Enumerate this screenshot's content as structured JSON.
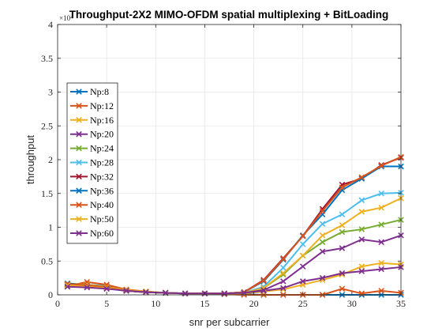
{
  "chart_data": {
    "type": "line",
    "title": "Throughput-2X2 MIMO-OFDM spatial multiplexing + BitLoading",
    "xlabel": "snr per subcarrier",
    "ylabel": "throughput",
    "y_exponent_label": "×10⁴",
    "xlim": [
      0,
      35
    ],
    "ylim": [
      0,
      4
    ],
    "xticks": [
      0,
      5,
      10,
      15,
      20,
      25,
      30,
      35
    ],
    "yticks": [
      0,
      0.5,
      1,
      1.5,
      2,
      2.5,
      3,
      3.5,
      4
    ],
    "xtick_labels": [
      "0",
      "5",
      "10",
      "15",
      "20",
      "25",
      "30",
      "35"
    ],
    "ytick_labels": [
      "0",
      "0.5",
      "1",
      "1.5",
      "2",
      "2.5",
      "3",
      "3.5",
      "4"
    ],
    "grid": true,
    "legend_position": "center-left",
    "marker": "x",
    "x": [
      1,
      3,
      5,
      7,
      9,
      11,
      13,
      15,
      17,
      19,
      21,
      23,
      25,
      27,
      29,
      31,
      33,
      35
    ],
    "series": [
      {
        "name": "Np:8",
        "color": "#0072BD",
        "values": [
          0.17,
          0.15,
          0.13,
          0.07,
          0.04,
          0.03,
          0.02,
          0.02,
          0.01,
          0.01,
          0.0,
          0.0,
          0.0,
          0.0,
          0.0,
          0.0,
          0.0,
          0.0
        ]
      },
      {
        "name": "Np:12",
        "color": "#D95319",
        "values": [
          0.13,
          0.19,
          0.15,
          0.08,
          0.05,
          0.03,
          0.02,
          0.02,
          0.01,
          0.0,
          0.0,
          0.0,
          0.0,
          0.0,
          0.09,
          0.02,
          0.06,
          0.03
        ]
      },
      {
        "name": "Np:16",
        "color": "#EDB120",
        "values": [
          0.16,
          0.15,
          0.12,
          0.07,
          0.05,
          0.03,
          0.02,
          0.02,
          0.02,
          0.02,
          0.05,
          0.08,
          0.15,
          0.22,
          0.3,
          0.42,
          0.47,
          0.45
        ]
      },
      {
        "name": "Np:20",
        "color": "#7E2F8E",
        "values": [
          0.14,
          0.12,
          0.1,
          0.06,
          0.04,
          0.03,
          0.02,
          0.02,
          0.02,
          0.03,
          0.06,
          0.1,
          0.2,
          0.25,
          0.32,
          0.35,
          0.38,
          0.41
        ]
      },
      {
        "name": "Np:24",
        "color": "#77AC30",
        "values": [
          0.13,
          0.12,
          0.1,
          0.06,
          0.04,
          0.03,
          0.02,
          0.02,
          0.02,
          0.03,
          0.1,
          0.3,
          0.58,
          0.78,
          0.93,
          0.97,
          1.04,
          1.11
        ]
      },
      {
        "name": "Np:28",
        "color": "#4DBEEE",
        "values": [
          0.15,
          0.13,
          0.1,
          0.06,
          0.04,
          0.03,
          0.02,
          0.02,
          0.02,
          0.03,
          0.12,
          0.4,
          0.75,
          1.05,
          1.19,
          1.4,
          1.5,
          1.51
        ]
      },
      {
        "name": "Np:32",
        "color": "#A2142F",
        "values": [
          0.16,
          0.14,
          0.11,
          0.06,
          0.04,
          0.03,
          0.02,
          0.02,
          0.02,
          0.04,
          0.22,
          0.54,
          0.87,
          1.27,
          1.63,
          1.72,
          1.92,
          2.03
        ]
      },
      {
        "name": "Np:36",
        "color": "#0072BD",
        "values": [
          0.15,
          0.13,
          0.1,
          0.06,
          0.04,
          0.03,
          0.02,
          0.02,
          0.02,
          0.04,
          0.2,
          0.52,
          0.88,
          1.19,
          1.55,
          1.72,
          1.9,
          1.9
        ]
      },
      {
        "name": "Np:40",
        "color": "#D95319",
        "values": [
          0.16,
          0.14,
          0.11,
          0.06,
          0.04,
          0.03,
          0.02,
          0.02,
          0.02,
          0.04,
          0.21,
          0.53,
          0.87,
          1.24,
          1.59,
          1.74,
          1.91,
          2.04
        ]
      },
      {
        "name": "Np:50",
        "color": "#EDB120",
        "values": [
          0.14,
          0.12,
          0.1,
          0.06,
          0.04,
          0.03,
          0.02,
          0.02,
          0.02,
          0.03,
          0.1,
          0.32,
          0.58,
          0.88,
          1.03,
          1.23,
          1.29,
          1.43
        ]
      },
      {
        "name": "Np:60",
        "color": "#7E2F8E",
        "values": [
          0.12,
          0.11,
          0.09,
          0.06,
          0.04,
          0.03,
          0.02,
          0.02,
          0.02,
          0.03,
          0.07,
          0.2,
          0.42,
          0.64,
          0.69,
          0.82,
          0.78,
          0.88
        ]
      }
    ]
  }
}
